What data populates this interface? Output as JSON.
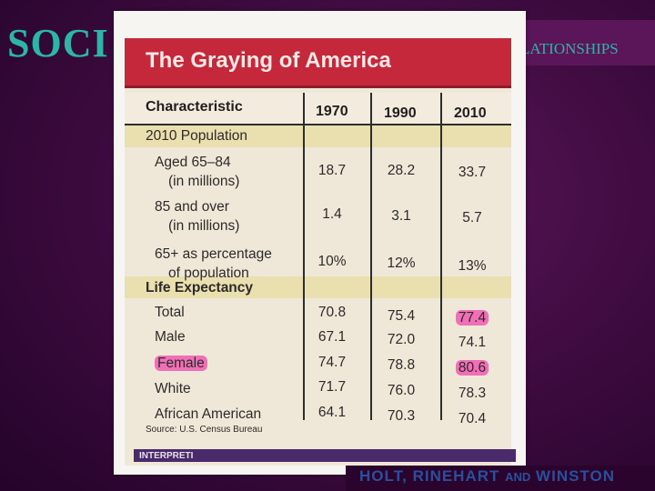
{
  "slide": {
    "title_left": "SOCI",
    "title_right": "LATIONSHIPS",
    "footer_main": "HOLT, RINEHART",
    "footer_and": "AND",
    "footer_end": "WINSTON"
  },
  "table": {
    "title": "The Graying of America",
    "columns": [
      "Characteristic",
      "1970",
      "1990",
      "2010"
    ],
    "sections": [
      {
        "label": "2010 Population",
        "rows": [
          {
            "label": "Aged 65–84",
            "sub": "(in millions)",
            "values": [
              "18.7",
              "28.2",
              "33.7"
            ]
          },
          {
            "label": "85 and over",
            "sub": "(in millions)",
            "values": [
              "1.4",
              "3.1",
              "5.7"
            ]
          },
          {
            "label": "65+ as percentage",
            "sub": "of population",
            "values": [
              "10%",
              "12%",
              "13%"
            ]
          }
        ]
      },
      {
        "label": "Life Expectancy",
        "rows": [
          {
            "label": "Total",
            "values": [
              "70.8",
              "75.4",
              "77.4"
            ]
          },
          {
            "label": "Male",
            "values": [
              "67.1",
              "72.0",
              "74.1"
            ]
          },
          {
            "label": "Female",
            "values": [
              "74.7",
              "78.8",
              "80.6"
            ]
          },
          {
            "label": "White",
            "values": [
              "71.7",
              "76.0",
              "78.3"
            ]
          },
          {
            "label": "African American",
            "values": [
              "64.1",
              "70.3",
              "70.4"
            ]
          }
        ]
      }
    ],
    "source": "Source: U.S. Census Bureau",
    "bottom_strip": "INTERPRETI",
    "highlight_color": "#f06fb6"
  }
}
